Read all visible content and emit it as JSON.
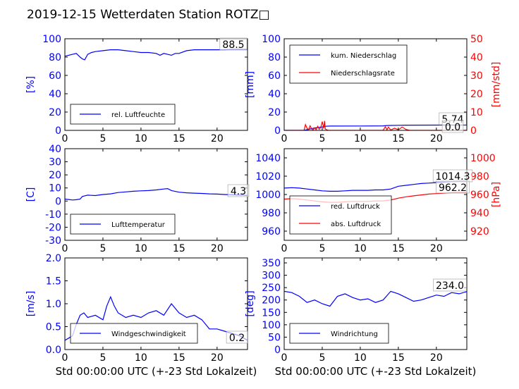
{
  "title": "2019-12-15 Wetterdaten Station ROTZ□",
  "x_common": {
    "label": "Std 00:00:00 UTC (+-23 Std Lokalzeit)",
    "ticks": [
      0,
      5,
      10,
      15,
      20
    ],
    "range": [
      0,
      24
    ]
  },
  "colors": {
    "primary": "#0000ff",
    "secondary": "#ff0000",
    "frame": "#000000"
  },
  "chart_data": [
    {
      "id": "humidity",
      "type": "line",
      "ylabel": "[%]",
      "ylim": [
        0,
        100
      ],
      "yticks": [
        0,
        20,
        40,
        60,
        80,
        100
      ],
      "legend": "lower-left",
      "series": [
        {
          "name": "rel. Luftfeuchte",
          "color": "#0000ff",
          "x": [
            0,
            0.5,
            1,
            1.5,
            2,
            2.3,
            2.6,
            3,
            3.5,
            4,
            5,
            6,
            7,
            8,
            9,
            10,
            11,
            12,
            12.5,
            13,
            13.5,
            14,
            14.5,
            15,
            16,
            17,
            18,
            19,
            20,
            21,
            22,
            23,
            24
          ],
          "y": [
            81,
            82,
            83,
            84,
            80,
            78,
            77,
            83,
            85,
            86,
            87,
            88,
            88,
            87,
            86,
            85,
            85,
            84,
            82,
            84,
            83,
            82,
            84,
            84,
            87,
            88,
            88,
            88,
            88,
            88,
            88.5,
            88.5,
            88.5
          ]
        }
      ],
      "annotations": [
        "88.5"
      ]
    },
    {
      "id": "precip",
      "type": "line",
      "ylabel": "[mm]",
      "ylabel2": "[mm/std]",
      "ylim": [
        0,
        100
      ],
      "yticks": [
        0,
        20,
        40,
        60,
        80,
        100
      ],
      "ylim2": [
        0,
        50
      ],
      "yticks2": [
        0,
        10,
        20,
        30,
        40,
        50
      ],
      "legend": "upper-left",
      "series": [
        {
          "name": "kum. Niederschlag",
          "color": "#0000ff",
          "axis": "left",
          "x": [
            0,
            2.6,
            3,
            3.5,
            4,
            4.5,
            5,
            5.4,
            6,
            10,
            13,
            13.5,
            14,
            15,
            16,
            20,
            24
          ],
          "y": [
            0,
            0,
            0.8,
            1.8,
            2.6,
            3.2,
            3.8,
            4.5,
            4.7,
            4.8,
            4.9,
            5.3,
            5.4,
            5.5,
            5.7,
            5.74,
            5.74
          ]
        },
        {
          "name": "Niederschlagsrate",
          "color": "#ff0000",
          "axis": "right",
          "x": [
            0,
            2.6,
            2.8,
            3.0,
            3.2,
            3.4,
            3.6,
            3.8,
            4.0,
            4.2,
            4.4,
            4.6,
            4.8,
            5.0,
            5.2,
            5.3,
            5.4,
            5.6,
            5.8,
            6,
            13,
            13.3,
            13.5,
            13.7,
            14,
            14.5,
            15,
            15.5,
            16,
            16.5,
            24
          ],
          "y": [
            0,
            0,
            3.2,
            1.2,
            0.3,
            2.5,
            0.8,
            0.2,
            1.4,
            0.4,
            2.2,
            0.6,
            1.5,
            4.8,
            1.0,
            5.2,
            0.8,
            0.3,
            0,
            0,
            0,
            2.0,
            0.3,
            1.8,
            0.2,
            1.2,
            0.3,
            1.8,
            0.5,
            0,
            0
          ]
        }
      ],
      "annotations": [
        "5.74",
        "0.0"
      ]
    },
    {
      "id": "temperature",
      "type": "line",
      "ylabel": "[C]",
      "ylim": [
        -30,
        40
      ],
      "yticks": [
        -30,
        -20,
        -10,
        0,
        10,
        20,
        30,
        40
      ],
      "legend": "lower-left",
      "series": [
        {
          "name": "Lufttemperatur",
          "color": "#0000ff",
          "x": [
            0,
            0.5,
            1,
            1.5,
            2,
            2.3,
            2.6,
            3,
            4,
            5,
            6,
            7,
            8,
            9,
            10,
            11,
            12,
            13,
            13.5,
            14,
            15,
            16,
            17,
            18,
            19,
            20,
            21,
            22,
            23,
            24
          ],
          "y": [
            1.5,
            1.2,
            0.8,
            1.0,
            1.5,
            3.5,
            4.0,
            4.5,
            4.2,
            5.0,
            5.5,
            6.5,
            7.0,
            7.5,
            7.8,
            8.0,
            8.5,
            9.2,
            9.5,
            8.0,
            6.8,
            6.3,
            6.0,
            5.8,
            5.5,
            5.3,
            5.0,
            4.8,
            4.5,
            4.3
          ]
        }
      ],
      "annotations": [
        "4.3"
      ]
    },
    {
      "id": "pressure",
      "type": "line",
      "ylabel2": "[hPa]",
      "ylim": [
        950,
        1050
      ],
      "yticks": [
        960,
        980,
        1000,
        1020,
        1040
      ],
      "ylim2": [
        910,
        1010
      ],
      "yticks2": [
        920,
        940,
        960,
        980,
        1000
      ],
      "legend": "lower-left",
      "series": [
        {
          "name": "red. Luftdruck",
          "color": "#0000ff",
          "axis": "left",
          "x": [
            0,
            1,
            2,
            3,
            4,
            5,
            6,
            7,
            8,
            9,
            10,
            11,
            12,
            13,
            14,
            15,
            16,
            17,
            18,
            19,
            20,
            21,
            22,
            23,
            24
          ],
          "y": [
            1007,
            1007.5,
            1007,
            1006,
            1005,
            1004,
            1003.5,
            1003.5,
            1004,
            1004.5,
            1004.5,
            1004.5,
            1005,
            1005,
            1006,
            1009,
            1010,
            1011,
            1012,
            1012.5,
            1013,
            1013.5,
            1014,
            1014.3,
            1014.3
          ]
        },
        {
          "name": "abs. Luftdruck",
          "color": "#ff0000",
          "axis": "right",
          "x": [
            0,
            1,
            2,
            3,
            4,
            5,
            6,
            7,
            8,
            9,
            10,
            11,
            12,
            13,
            14,
            15,
            16,
            17,
            18,
            19,
            20,
            21,
            22,
            23,
            24
          ],
          "y": [
            955,
            955.5,
            955,
            954,
            953,
            952,
            951.5,
            951.5,
            952,
            952.5,
            952.5,
            952.5,
            953,
            953,
            954,
            956,
            957.5,
            958.5,
            959.5,
            960.5,
            961,
            961.5,
            962,
            962.2,
            962.2
          ]
        }
      ],
      "annotations": [
        "1014.3",
        "962.2"
      ]
    },
    {
      "id": "wind_speed",
      "type": "line",
      "ylabel": "[m/s]",
      "ylim": [
        0,
        2.0
      ],
      "yticks": [
        0.0,
        0.5,
        1.0,
        1.5,
        2.0
      ],
      "legend": "lower-center",
      "series": [
        {
          "name": "Windgeschwindigkeit",
          "color": "#0000ff",
          "x": [
            0,
            0.5,
            1,
            1.5,
            2,
            2.5,
            3,
            4,
            5,
            5.5,
            6,
            6.5,
            7,
            8,
            9,
            10,
            11,
            12,
            13,
            14,
            15,
            16,
            17,
            18,
            19,
            20,
            21,
            22,
            23,
            24
          ],
          "y": [
            0.2,
            0.25,
            0.3,
            0.55,
            0.75,
            0.8,
            0.7,
            0.75,
            0.65,
            0.95,
            1.15,
            0.95,
            0.8,
            0.7,
            0.75,
            0.7,
            0.8,
            0.85,
            0.75,
            1.0,
            0.8,
            0.7,
            0.75,
            0.65,
            0.45,
            0.45,
            0.4,
            0.35,
            0.3,
            0.2
          ]
        }
      ],
      "annotations": [
        "0.2"
      ]
    },
    {
      "id": "wind_dir",
      "type": "line",
      "ylabel": "[deg]",
      "ylim": [
        0,
        370
      ],
      "yticks": [
        0,
        50,
        100,
        150,
        200,
        250,
        300,
        350
      ],
      "legend": "lower-left",
      "series": [
        {
          "name": "Windrichtung",
          "color": "#0000ff",
          "x": [
            0,
            1,
            2,
            3,
            4,
            5,
            6,
            7,
            8,
            9,
            10,
            11,
            12,
            13,
            14,
            15,
            16,
            17,
            18,
            19,
            20,
            21,
            22,
            23,
            24
          ],
          "y": [
            235,
            230,
            215,
            190,
            200,
            185,
            175,
            215,
            225,
            210,
            200,
            205,
            190,
            200,
            235,
            225,
            210,
            195,
            200,
            210,
            220,
            215,
            230,
            225,
            234
          ]
        }
      ],
      "annotations": [
        "234.0"
      ]
    }
  ]
}
